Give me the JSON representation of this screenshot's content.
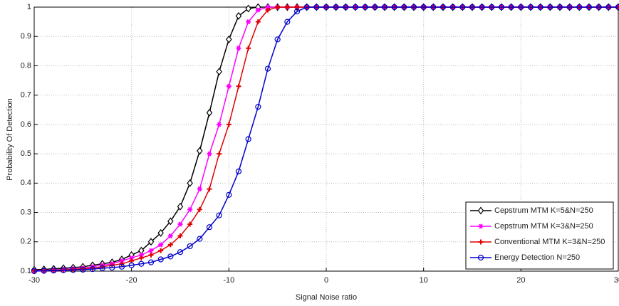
{
  "chart_data": {
    "type": "line",
    "xlabel": "Signal Noise ratio",
    "ylabel": "Probability Of Detection",
    "x": [
      -30,
      -29,
      -28,
      -27,
      -26,
      -25,
      -24,
      -23,
      -22,
      -21,
      -20,
      -19,
      -18,
      -17,
      -16,
      -15,
      -14,
      -13,
      -12,
      -11,
      -10,
      -9,
      -8,
      -7,
      -6,
      -5,
      -4,
      -3,
      -2,
      -1,
      0,
      1,
      2,
      3,
      4,
      5,
      6,
      7,
      8,
      9,
      10,
      11,
      12,
      13,
      14,
      15,
      16,
      17,
      18,
      19,
      20,
      21,
      22,
      23,
      24,
      25,
      26,
      27,
      28,
      29,
      30
    ],
    "series": [
      {
        "name": "Cepstrum MTM K=5&N=250",
        "color": "#000000",
        "marker": "diamond",
        "values": [
          0.105,
          0.106,
          0.108,
          0.11,
          0.112,
          0.115,
          0.12,
          0.125,
          0.13,
          0.14,
          0.155,
          0.17,
          0.2,
          0.23,
          0.27,
          0.32,
          0.4,
          0.51,
          0.64,
          0.78,
          0.89,
          0.97,
          0.995,
          1,
          1,
          1,
          1,
          1,
          1,
          1,
          1,
          1,
          1,
          1,
          1,
          1,
          1,
          1,
          1,
          1,
          1,
          1,
          1,
          1,
          1,
          1,
          1,
          1,
          1,
          1,
          1,
          1,
          1,
          1,
          1,
          1,
          1,
          1,
          1,
          1,
          1
        ]
      },
      {
        "name": "Cepstrum MTM K=3&N=250",
        "color": "#ff00ff",
        "marker": "star",
        "values": [
          0.102,
          0.103,
          0.104,
          0.106,
          0.108,
          0.11,
          0.115,
          0.12,
          0.125,
          0.135,
          0.145,
          0.155,
          0.17,
          0.19,
          0.22,
          0.26,
          0.31,
          0.38,
          0.5,
          0.6,
          0.73,
          0.86,
          0.95,
          0.99,
          1,
          1,
          1,
          1,
          1,
          1,
          1,
          1,
          1,
          1,
          1,
          1,
          1,
          1,
          1,
          1,
          1,
          1,
          1,
          1,
          1,
          1,
          1,
          1,
          1,
          1,
          1,
          1,
          1,
          1,
          1,
          1,
          1,
          1,
          1,
          1,
          1
        ]
      },
      {
        "name": "Conventional MTM K=3&N=250",
        "color": "#e00000",
        "marker": "plus",
        "values": [
          0.101,
          0.102,
          0.103,
          0.104,
          0.106,
          0.108,
          0.11,
          0.115,
          0.12,
          0.125,
          0.135,
          0.145,
          0.155,
          0.17,
          0.19,
          0.22,
          0.26,
          0.31,
          0.38,
          0.5,
          0.6,
          0.73,
          0.86,
          0.95,
          0.99,
          1,
          1,
          1,
          1,
          1,
          1,
          1,
          1,
          1,
          1,
          1,
          1,
          1,
          1,
          1,
          1,
          1,
          1,
          1,
          1,
          1,
          1,
          1,
          1,
          1,
          1,
          1,
          1,
          1,
          1,
          1,
          1,
          1,
          1,
          1,
          1
        ]
      },
      {
        "name": "Energy Detection N=250",
        "color": "#0000cc",
        "marker": "circle",
        "values": [
          0.1,
          0.101,
          0.102,
          0.103,
          0.104,
          0.105,
          0.107,
          0.11,
          0.112,
          0.115,
          0.12,
          0.125,
          0.13,
          0.14,
          0.15,
          0.165,
          0.185,
          0.21,
          0.25,
          0.29,
          0.36,
          0.44,
          0.55,
          0.66,
          0.79,
          0.89,
          0.95,
          0.985,
          1,
          1,
          1,
          1,
          1,
          1,
          1,
          1,
          1,
          1,
          1,
          1,
          1,
          1,
          1,
          1,
          1,
          1,
          1,
          1,
          1,
          1,
          1,
          1,
          1,
          1,
          1,
          1,
          1,
          1,
          1,
          1,
          1
        ]
      }
    ],
    "xlim": [
      -30,
      30
    ],
    "xticks": [
      -30,
      -20,
      -10,
      0,
      10,
      20,
      30
    ],
    "ylim": [
      0.1,
      1
    ],
    "yticks": [
      0.1,
      0.2,
      0.3,
      0.4,
      0.5,
      0.6,
      0.7,
      0.8,
      0.9,
      1
    ],
    "grid": true,
    "legend": "lower right"
  }
}
